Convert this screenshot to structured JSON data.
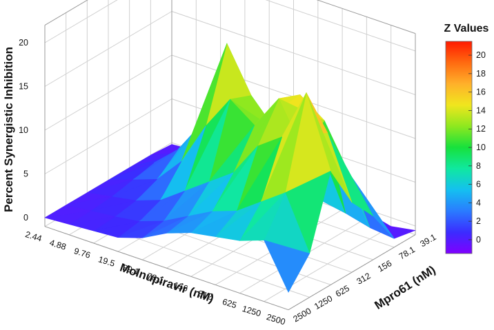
{
  "chart_data": {
    "type": "surface3d",
    "title": "",
    "x": {
      "label": "Molnupiravir (nM)",
      "categories": [
        "2.44",
        "4.88",
        "9.76",
        "19.5",
        "39.1",
        "78.1",
        "156",
        "312",
        "625",
        "1250",
        "2500"
      ]
    },
    "y": {
      "label": "Mpro61 (nM)",
      "categories": [
        "39.1",
        "78.1",
        "156",
        "312",
        "625",
        "1250",
        "2500"
      ]
    },
    "z": {
      "label": "Percent Synergistic Inhibition",
      "ticks": [
        0,
        5,
        10,
        15,
        20
      ],
      "range": [
        -1,
        22
      ]
    },
    "z_values_by_mpro61": [
      [
        0,
        0.2,
        0.4,
        0.6,
        1.5,
        3,
        4,
        4.5,
        5,
        6,
        1
      ],
      [
        0,
        0.3,
        0.6,
        1,
        2,
        3.5,
        5,
        6,
        8,
        10,
        4
      ],
      [
        0,
        0.5,
        1,
        2,
        4,
        6,
        8,
        12,
        14,
        20,
        12
      ],
      [
        0,
        1,
        2,
        5,
        10,
        14,
        12,
        16,
        11,
        14,
        7
      ],
      [
        0,
        1.5,
        4,
        8,
        18,
        13,
        10,
        15,
        13,
        8,
        4
      ],
      [
        0,
        1,
        2,
        3,
        3,
        2,
        0.5,
        1.5,
        1,
        0.3,
        0
      ],
      [
        -0.2,
        0,
        0,
        0,
        0,
        0,
        -0.5,
        0,
        -0.3,
        -1,
        -0.5
      ]
    ],
    "colorbar": {
      "title": "Z Values",
      "ticks": [
        0,
        2,
        4,
        6,
        8,
        10,
        12,
        14,
        16,
        18,
        20
      ],
      "range": [
        -1.5,
        21.5
      ]
    },
    "colormap": [
      "#7f00ff",
      "#3b2cff",
      "#2a7bff",
      "#14c0f0",
      "#10e8a0",
      "#17e13c",
      "#8ee81f",
      "#f0e61e",
      "#ffb02a",
      "#ff6a10",
      "#ff1a00"
    ]
  }
}
